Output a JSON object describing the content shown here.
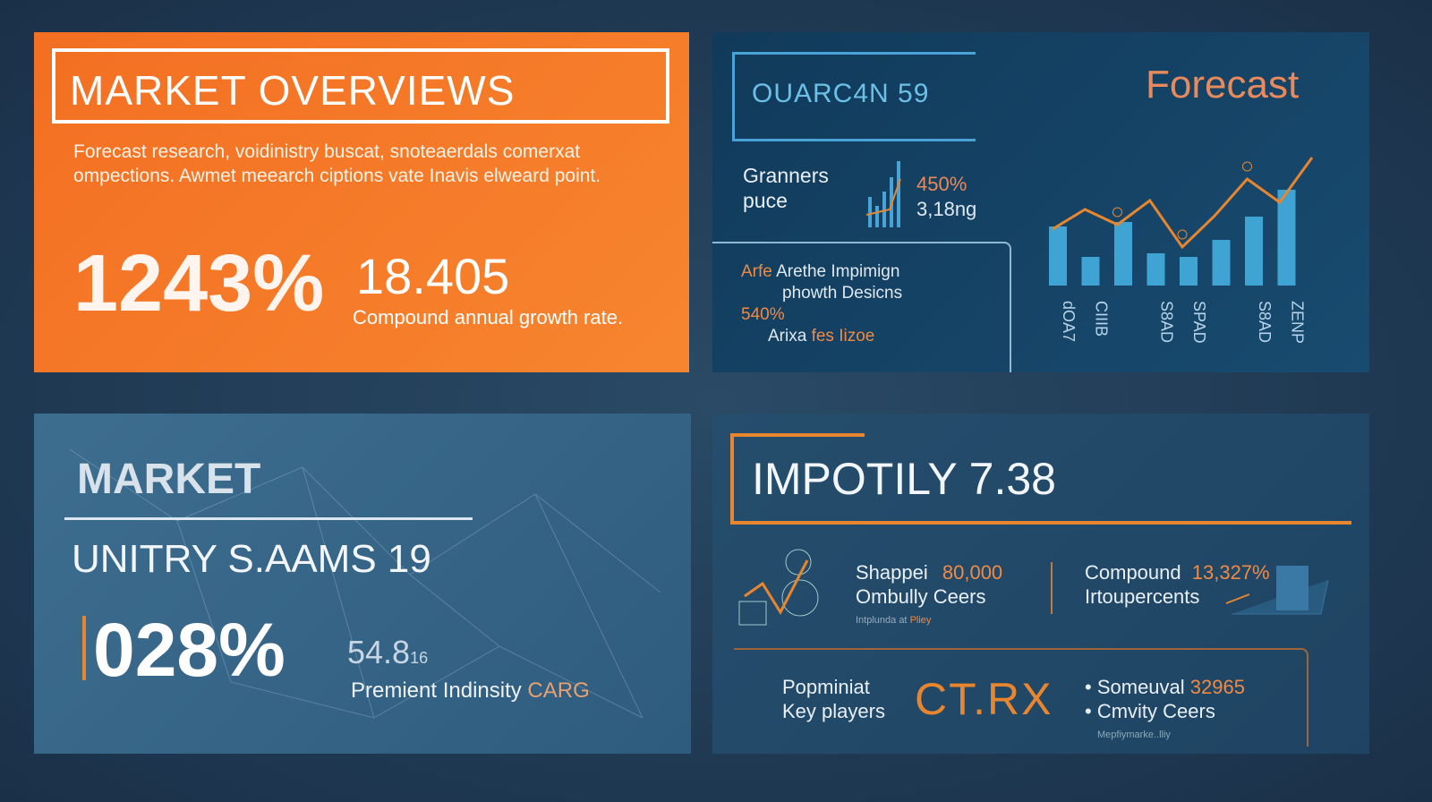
{
  "overview": {
    "title": "MARKET OVERVIEWS",
    "description": "Forecast research, voidinistry buscat, snoteaerdals comerxat ompections. Awmet meearch ciptions vate Inavis elweard point.",
    "big_value": "1243%",
    "value": "18.405",
    "value_label": "Compound annual growth rate."
  },
  "forecast": {
    "box_title": "OUARC4N 59",
    "title": "Forecast",
    "metric_label_1": "Granners",
    "metric_label_2": "puce",
    "metric_value_1": "450%",
    "metric_value_2": "3,18ng",
    "inset_line_1_accent": "Arfe",
    "inset_line_1": "Arethe Impimign",
    "inset_line_2": "phowth Desicns",
    "inset_value": "540%",
    "inset_line_3": "Arixa",
    "inset_line_3_accent": "fes Iizoe"
  },
  "chart_data": {
    "type": "bar",
    "bar_values": [
      66,
      32,
      71,
      36,
      32,
      51,
      77,
      107
    ],
    "line_values": [
      40,
      62,
      45,
      72,
      20,
      55,
      96,
      70,
      120
    ],
    "tick_labels": [
      "dOA7",
      "CIIIB",
      "S8AD",
      "SPAD",
      "S8AD",
      "ZENP"
    ],
    "colors": {
      "bar": "#3fa3d4",
      "line": "#e8862f"
    }
  },
  "market": {
    "title": "MARKET",
    "subtitle": "UNITRY S.AAMS 19",
    "big_value": "028%",
    "small_value": "54.8",
    "small_unit": "16",
    "label": "Premient Indinsity",
    "label_accent": "CARG"
  },
  "impotily": {
    "title": "IMPOTILY 7.38",
    "stat1_label": "Shappei",
    "stat1_value": "80,000",
    "stat1_sub": "Ombully Ceers",
    "stat1_note": "Intplunda at",
    "stat1_note_accent": "Pliey",
    "stat2_label": "Compound",
    "stat2_value": "13,327%",
    "stat2_sub": "Irtoupercents",
    "players_label_1": "Popminiat",
    "players_label_2": "Key players",
    "players_logo": "CT.RX",
    "stat3_label": "Someuval",
    "stat3_value": "32965",
    "stat3_sub": "Cmvity Ceers",
    "stat3_note": "Mepfiymarke..lliy"
  },
  "colors": {
    "orange": "#f47a2a",
    "navy": "#164466",
    "steel": "#3a6a8c",
    "accent": "#e8862f"
  }
}
